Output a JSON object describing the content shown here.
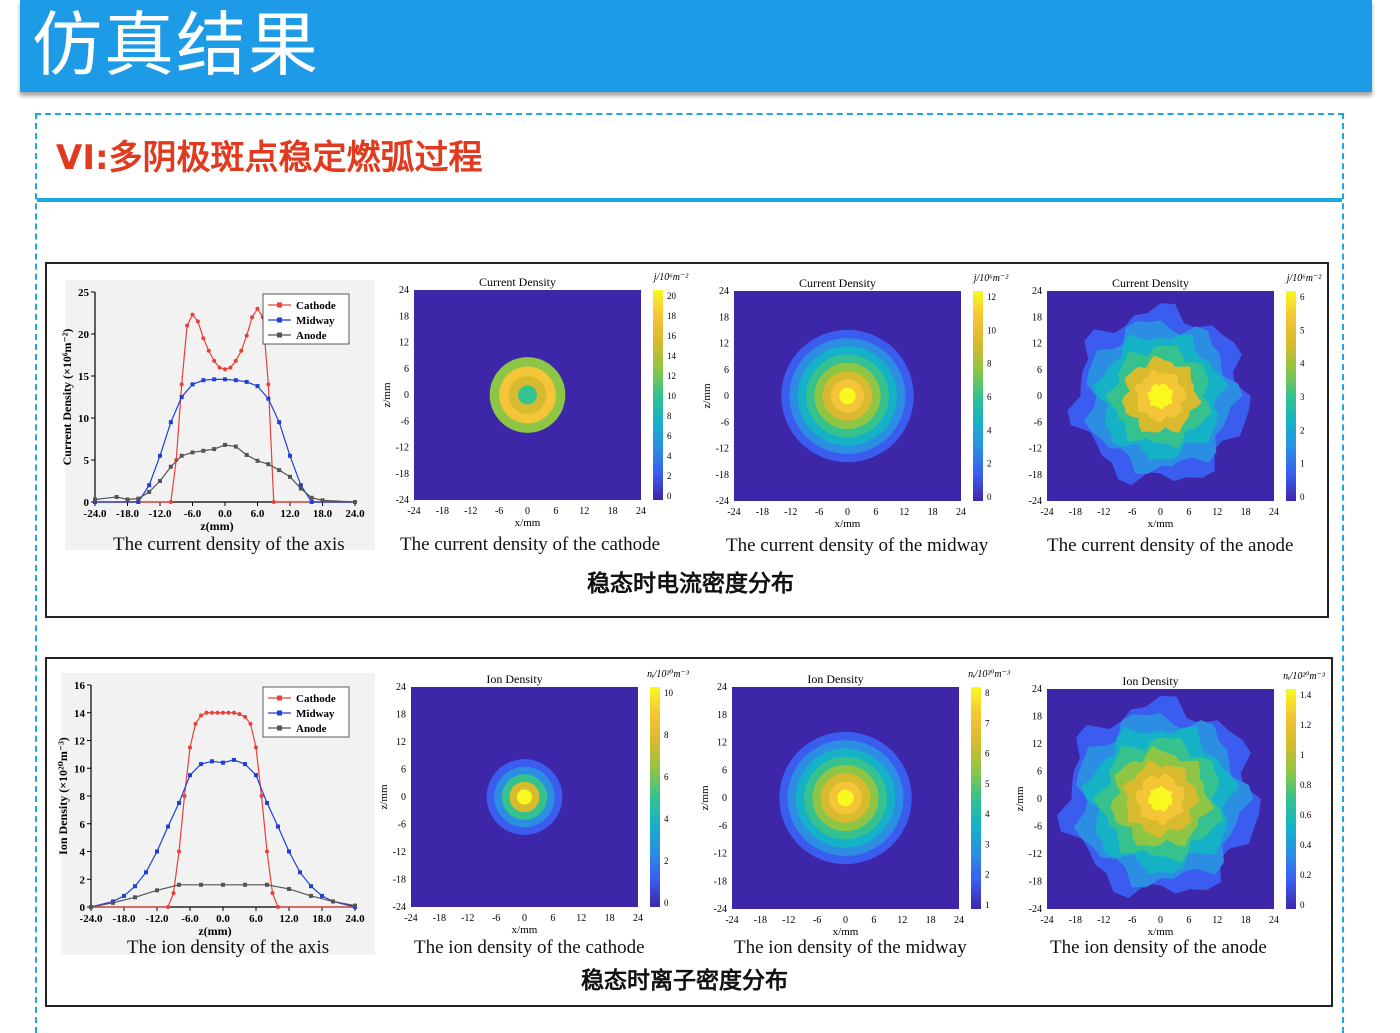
{
  "header": {
    "title": "仿真结果"
  },
  "section": {
    "title": "VI:多阴极斑点稳定燃弧过程"
  },
  "colors": {
    "header_bg": "#1e9be6",
    "section_title": "#e23a1e",
    "accent_line": "#1ea8e0"
  },
  "current_group": {
    "title": "稳态时电流密度分布",
    "captions": [
      "The current density of the axis",
      "The current density of the cathode",
      "The current density of the midway",
      "The current density of the anode"
    ]
  },
  "ion_group": {
    "title": "稳态时离子密度分布",
    "captions": [
      "The ion density of the axis",
      "The ion density of the cathode",
      "The ion density of the midway",
      "The ion density of the anode"
    ]
  },
  "chart_data": [
    {
      "type": "line",
      "ylabel": "Current Density (×10⁶m⁻²)",
      "xlabel": "z(mm)",
      "xlim": [
        -24,
        24
      ],
      "ylim": [
        0,
        25
      ],
      "xticks": [
        "-24.0",
        "-18.0",
        "-12.0",
        "-6.0",
        "0.0",
        "6.0",
        "12.0",
        "18.0",
        "24.0"
      ],
      "yticks": [
        "0",
        "5",
        "10",
        "15",
        "20",
        "25"
      ],
      "legend": "top-right",
      "series": [
        {
          "name": "Cathode",
          "color": "#e8403a",
          "x": [
            -24,
            -10,
            -9,
            -8,
            -7,
            -6,
            -5,
            -4,
            -3,
            -2,
            -1,
            0,
            1,
            2,
            3,
            4,
            5,
            6,
            7,
            8,
            9,
            24
          ],
          "y": [
            0,
            0,
            5,
            14,
            21,
            22.3,
            21.5,
            19.5,
            18,
            16.8,
            16,
            15.8,
            16,
            16.8,
            18,
            19.8,
            22,
            23,
            22,
            14,
            0,
            0
          ]
        },
        {
          "name": "Midway",
          "color": "#1f3fd6",
          "x": [
            -24,
            -16,
            -14,
            -12,
            -10,
            -8,
            -6,
            -4,
            -2,
            0,
            2,
            4,
            6,
            8,
            10,
            12,
            14,
            16,
            24
          ],
          "y": [
            0,
            0,
            2,
            5.5,
            9.5,
            12.5,
            14,
            14.5,
            14.6,
            14.6,
            14.5,
            14.3,
            13.8,
            12.3,
            9.5,
            5.5,
            2,
            0,
            0
          ]
        },
        {
          "name": "Anode",
          "color": "#555555",
          "x": [
            -24,
            -20,
            -18,
            -16,
            -14,
            -12,
            -10,
            -8,
            -6,
            -4,
            -2,
            0,
            2,
            4,
            6,
            8,
            10,
            12,
            14,
            16,
            18,
            24
          ],
          "y": [
            0.3,
            0.6,
            0.3,
            0.4,
            1.2,
            2.5,
            4.2,
            5.5,
            5.9,
            6.1,
            6.3,
            6.8,
            6.6,
            5.6,
            4.9,
            4.5,
            3.8,
            3.0,
            1.6,
            0.5,
            0.2,
            0
          ]
        }
      ]
    },
    {
      "type": "heatmap",
      "title": "Current Density",
      "xlabel": "x/mm",
      "ylabel": "z/mm",
      "colorbar_label": "j/10⁶m⁻²",
      "colorbar_ticks": [
        "0",
        "2",
        "4",
        "6",
        "8",
        "10",
        "12",
        "14",
        "16",
        "18",
        "20"
      ],
      "axis_ticks": [
        "-24",
        "-18",
        "-12",
        "-6",
        "0",
        "6",
        "12",
        "18",
        "24"
      ],
      "spot_radius_mm": 8
    },
    {
      "type": "heatmap",
      "title": "Current Density",
      "xlabel": "x/mm",
      "ylabel": "z/mm",
      "colorbar_label": "j/10⁶m⁻²",
      "colorbar_ticks": [
        "0",
        "2",
        "4",
        "6",
        "8",
        "10",
        "12"
      ],
      "axis_ticks": [
        "-24",
        "-18",
        "-12",
        "-6",
        "0",
        "6",
        "12",
        "18",
        "24"
      ],
      "spot_radius_mm": 14
    },
    {
      "type": "heatmap",
      "title": "Current Density",
      "xlabel": "x/mm",
      "ylabel": "",
      "colorbar_label": "j/10⁶m⁻²",
      "colorbar_ticks": [
        "0",
        "1",
        "2",
        "3",
        "4",
        "5",
        "6"
      ],
      "axis_ticks": [
        "-24",
        "-18",
        "-12",
        "-6",
        "0",
        "6",
        "12",
        "18",
        "24"
      ],
      "spot_radius_mm": 18
    },
    {
      "type": "line",
      "ylabel": "Ion Density (×10²⁰m⁻³)",
      "xlabel": "z(mm)",
      "xlim": [
        -24,
        24
      ],
      "ylim": [
        0,
        16
      ],
      "xticks": [
        "-24.0",
        "-18.0",
        "-12.0",
        "-6.0",
        "0.0",
        "6.0",
        "12.0",
        "18.0",
        "24.0"
      ],
      "yticks": [
        "0",
        "2",
        "4",
        "6",
        "8",
        "10",
        "12",
        "14",
        "16"
      ],
      "legend": "top-right",
      "series": [
        {
          "name": "Cathode",
          "color": "#e8403a",
          "x": [
            -24,
            -10,
            -9,
            -8,
            -7,
            -6,
            -5,
            -4,
            -3,
            -2,
            -1,
            0,
            1,
            2,
            3,
            4,
            5,
            6,
            7,
            8,
            9,
            10,
            24
          ],
          "y": [
            0,
            0,
            1,
            4,
            8,
            11.5,
            13.2,
            13.8,
            14,
            14,
            14,
            14,
            14,
            14,
            13.9,
            13.7,
            13.2,
            11.5,
            8,
            4,
            1,
            0,
            0
          ]
        },
        {
          "name": "Midway",
          "color": "#1f3fd6",
          "x": [
            -24,
            -20,
            -18,
            -16,
            -14,
            -12,
            -10,
            -8,
            -6,
            -4,
            -2,
            0,
            2,
            4,
            6,
            8,
            10,
            12,
            14,
            16,
            18,
            20,
            24
          ],
          "y": [
            0,
            0.4,
            0.8,
            1.5,
            2.5,
            4,
            5.8,
            7.5,
            9.5,
            10.3,
            10.5,
            10.4,
            10.6,
            10.3,
            9.5,
            7.5,
            5.8,
            4,
            2.5,
            1.5,
            0.8,
            0.4,
            0
          ]
        },
        {
          "name": "Anode",
          "color": "#555555",
          "x": [
            -24,
            -20,
            -16,
            -12,
            -8,
            -4,
            0,
            4,
            8,
            12,
            16,
            20,
            24
          ],
          "y": [
            0,
            0.3,
            0.7,
            1.2,
            1.6,
            1.6,
            1.6,
            1.6,
            1.6,
            1.3,
            0.8,
            0.4,
            0.1
          ]
        }
      ]
    },
    {
      "type": "heatmap",
      "title": "Ion Density",
      "xlabel": "x/mm",
      "ylabel": "z/mm",
      "colorbar_label": "nᵢ/10²⁰m⁻³",
      "colorbar_ticks": [
        "0",
        "2",
        "4",
        "6",
        "8",
        "10"
      ],
      "axis_ticks": [
        "-24",
        "-18",
        "-12",
        "-6",
        "0",
        "6",
        "12",
        "18",
        "24"
      ],
      "spot_radius_mm": 8
    },
    {
      "type": "heatmap",
      "title": "Ion Density",
      "xlabel": "x/mm",
      "ylabel": "z/mm",
      "colorbar_label": "nᵢ/10²⁰m⁻³",
      "colorbar_ticks": [
        "1",
        "2",
        "3",
        "4",
        "5",
        "6",
        "7",
        "8"
      ],
      "axis_ticks": [
        "-24",
        "-18",
        "-12",
        "-6",
        "0",
        "6",
        "12",
        "18",
        "24"
      ],
      "spot_radius_mm": 14
    },
    {
      "type": "heatmap",
      "title": "Ion Density",
      "xlabel": "x/mm",
      "ylabel": "z/mm",
      "colorbar_label": "nᵢ/10²⁰m⁻³",
      "colorbar_ticks": [
        "0",
        "0.2",
        "0.4",
        "0.6",
        "0.8",
        "1",
        "1.2",
        "1.4"
      ],
      "axis_ticks": [
        "-24",
        "-18",
        "-12",
        "-6",
        "0",
        "6",
        "12",
        "18",
        "24"
      ],
      "spot_radius_mm": 20
    }
  ]
}
